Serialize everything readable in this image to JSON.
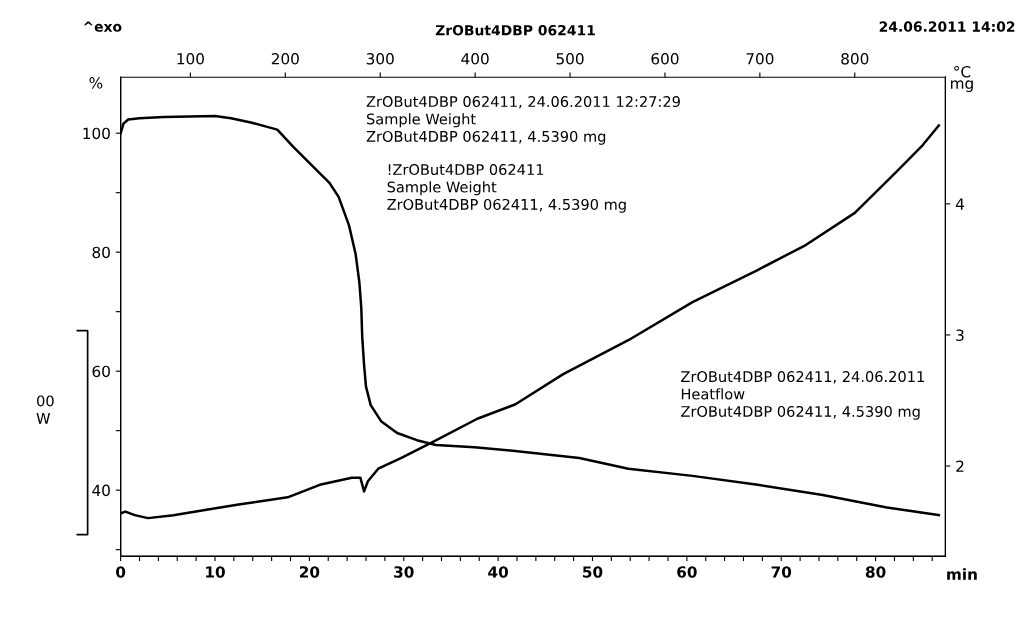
{
  "chart_data": {
    "type": "line",
    "title": "ZrOBut4DBP 062411",
    "annotations": [
      "^exo",
      "24.06.2011 14:02",
      "ZrOBut4DBP 062411, 24.06.2011 12:27:29\nSample Weight\nZrOBut4DBP 062411, 4.5390 mg",
      "!ZrOBut4DBP 062411\nSample Weight\nZrOBut4DBP 062411, 4.5390 mg",
      "ZrOBut4DBP 062411, 24.06.2011\nHeatflow\nZrOBut4DBP 062411, 4.5390 mg",
      "00\nW"
    ],
    "xlabel": "min",
    "ylabel": "%",
    "y2label": "mg",
    "x2label": "°C",
    "series": [
      {
        "color": "#000000",
        "x": [
          0,
          0.3,
          0.8,
          2.0,
          4.6,
          10.0,
          11.7,
          13.8,
          16.6,
          18.3,
          20.0,
          22.1,
          23.1,
          24.2,
          24.9,
          25.3,
          25.5,
          25.6,
          25.8,
          26.0,
          26.5,
          27.6,
          29.3,
          31.4,
          33.4,
          37.5,
          41.8,
          48.6,
          53.8,
          60.6,
          67.5,
          74.4,
          81.2,
          86.7
        ],
        "values": [
          100.0,
          101.6,
          102.3,
          102.5,
          102.7,
          102.9,
          102.5,
          101.8,
          100.6,
          97.7,
          95.0,
          91.7,
          89.3,
          84.5,
          79.7,
          74.9,
          70.7,
          65.8,
          61.0,
          57.4,
          54.3,
          51.6,
          49.6,
          48.4,
          47.6,
          47.2,
          46.6,
          45.4,
          43.6,
          42.4,
          40.9,
          39.2,
          37.1,
          35.8
        ]
      },
      {
        "color": "#000000",
        "x": [
          0,
          0.5,
          1.5,
          2.9,
          5.6,
          9.1,
          12.5,
          17.7,
          21.1,
          24.5,
          25.4,
          25.8,
          26.2,
          27.3,
          29.7,
          33.1,
          37.8,
          41.8,
          46.9,
          53.8,
          60.6,
          67.5,
          72.6,
          77.8,
          82.2,
          85.0,
          86.7
        ],
        "values": [
          36.1,
          36.4,
          35.8,
          35.3,
          35.8,
          36.7,
          37.6,
          38.8,
          40.9,
          42.1,
          42.1,
          39.8,
          41.5,
          43.6,
          45.4,
          48.1,
          52.0,
          54.4,
          59.5,
          65.2,
          71.6,
          77.0,
          81.2,
          86.6,
          93.5,
          98.0,
          101.3
        ]
      }
    ],
    "xlim": [
      0,
      87.4
    ],
    "xticks": [
      0,
      {
        "value": 2,
        "label": null
      },
      {
        "value": 4,
        "label": null
      },
      {
        "value": 6,
        "label": null
      },
      {
        "value": 8,
        "label": null
      },
      10,
      {
        "value": 12,
        "label": null
      },
      {
        "value": 14,
        "label": null
      },
      {
        "value": 16,
        "label": null
      },
      {
        "value": 18,
        "label": null
      },
      20,
      {
        "value": 22,
        "label": null
      },
      {
        "value": 24,
        "label": null
      },
      {
        "value": 26,
        "label": null
      },
      {
        "value": 28,
        "label": null
      },
      30,
      {
        "value": 32,
        "label": null
      },
      {
        "value": 34,
        "label": null
      },
      {
        "value": 36,
        "label": null
      },
      {
        "value": 38,
        "label": null
      },
      40,
      {
        "value": 42,
        "label": null
      },
      {
        "value": 44,
        "label": null
      },
      {
        "value": 46,
        "label": null
      },
      {
        "value": 48,
        "label": null
      },
      50,
      {
        "value": 52,
        "label": null
      },
      {
        "value": 54,
        "label": null
      },
      {
        "value": 56,
        "label": null
      },
      {
        "value": 58,
        "label": null
      },
      60,
      {
        "value": 62,
        "label": null
      },
      {
        "value": 64,
        "label": null
      },
      {
        "value": 66,
        "label": null
      },
      {
        "value": 68,
        "label": null
      },
      70,
      {
        "value": 72,
        "label": null
      },
      {
        "value": 74,
        "label": null
      },
      {
        "value": 76,
        "label": null
      },
      {
        "value": 78,
        "label": null
      },
      80,
      {
        "value": 82,
        "label": null
      },
      {
        "value": 84,
        "label": null
      },
      {
        "value": 86,
        "label": null
      }
    ],
    "ylim": [
      28.9,
      109.4
    ],
    "yticks": [
      {
        "value": 30,
        "label": null
      },
      40,
      {
        "value": 50,
        "label": null
      },
      60,
      {
        "value": 70,
        "label": null
      },
      80,
      {
        "value": 90,
        "label": null
      },
      100
    ],
    "y2lim": [
      1.312,
      4.966
    ],
    "y2ticks": [
      2,
      3,
      4
    ],
    "x2lim": [
      26.5,
      895.5
    ],
    "x2ticks": [
      100,
      200,
      300,
      400,
      500,
      600,
      700,
      800
    ],
    "grid": false,
    "legend": false,
    "line_style": "solid",
    "marker": "none"
  }
}
